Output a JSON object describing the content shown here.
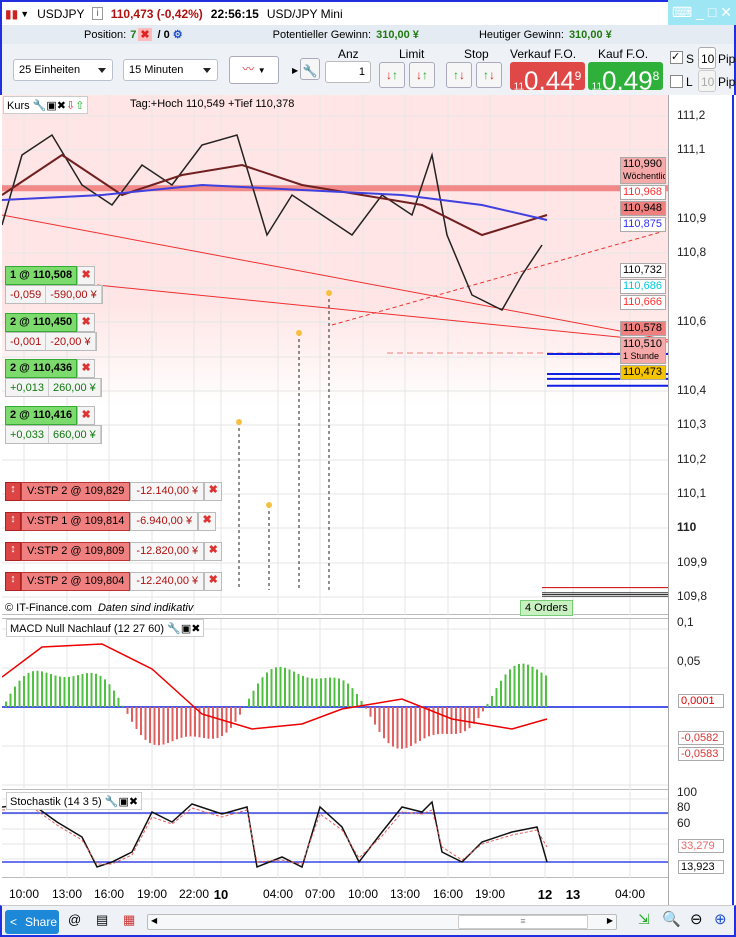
{
  "title": {
    "symbol": "USDJPY",
    "price_change": "110,473 (-0,42%)",
    "time": "22:56:15",
    "name": "USD/JPY Mini"
  },
  "position_bar": {
    "position_label": "Position:",
    "position_value": "7",
    "position_sep": "/ 0",
    "pot_gain_label": "Potentieller Gewinn:",
    "pot_gain_value": "310,00 ¥",
    "today_gain_label": "Heutiger Gewinn:",
    "today_gain_value": "310,00 ¥"
  },
  "toolbar": {
    "units": "25 Einheiten",
    "interval": "15 Minuten",
    "anz_label": "Anz",
    "anz_value": "1",
    "limit_label": "Limit",
    "stop_label": "Stop",
    "sell_label": "Verkauf F.O.",
    "buy_label": "Kauf F.O.",
    "sell_price": {
      "pre": "11",
      "main": "0,44",
      "sup": "9"
    },
    "buy_price": {
      "pre": "11",
      "main": "0,49",
      "sup": "8"
    },
    "s_label": "S",
    "s_pips": "10",
    "l_label": "L",
    "l_pips": "10",
    "pips_label": "Pips"
  },
  "chart": {
    "title": "Kurs",
    "info": "Tag:+Hoch 110,549 +Tief 110,378",
    "copyright": "© IT-Finance.com",
    "disclaimer": "Daten sind indikativ",
    "orders_tab": "4 Orders"
  },
  "price_axis": {
    "ticks": [
      "111,2",
      "111,1",
      "110,9",
      "110,8",
      "110,6",
      "110,4",
      "110,3",
      "110,2",
      "110,1",
      "110",
      "109,9",
      "109,8"
    ],
    "labels": [
      {
        "text": "110,990",
        "sub": "Wöchentlich",
        "color": "#000",
        "bg": "#f5a9a9"
      },
      {
        "text": "110,968",
        "color": "#ff3030",
        "bg": "#fff"
      },
      {
        "text": "110,948",
        "color": "#000",
        "bg": "#f08080"
      },
      {
        "text": "110,875",
        "color": "#3030ff",
        "bg": "#fff"
      },
      {
        "text": "110,732",
        "color": "#000",
        "bg": "#fff"
      },
      {
        "text": "110,686",
        "color": "#00c8e0",
        "bg": "#fff"
      },
      {
        "text": "110,666",
        "color": "#ff3030",
        "bg": "#fff"
      },
      {
        "text": "110,578",
        "color": "#000",
        "bg": "#f08080"
      },
      {
        "text": "110,510",
        "sub": "1 Stunde",
        "color": "#000",
        "bg": "#f5a9a9"
      },
      {
        "text": "110,473",
        "color": "#000",
        "bg": "#f5c400"
      }
    ]
  },
  "positions": [
    {
      "label": "1 @ 110,508",
      "diff": "-0,059",
      "pl": "-590,00 ¥",
      "sign": "neg"
    },
    {
      "label": "2 @ 110,450",
      "diff": "-0,001",
      "pl": "-20,00 ¥",
      "sign": "neg"
    },
    {
      "label": "2 @ 110,436",
      "diff": "+0,013",
      "pl": "260,00 ¥",
      "sign": "pos"
    },
    {
      "label": "2 @ 110,416",
      "diff": "+0,033",
      "pl": "660,00 ¥",
      "sign": "pos"
    }
  ],
  "stops": [
    {
      "label": "V:STP  2 @ 109,829",
      "value": "-12.140,00 ¥"
    },
    {
      "label": "V:STP  1 @ 109,814",
      "value": "-6.940,00 ¥"
    },
    {
      "label": "V:STP  2 @ 109,809",
      "value": "-12.820,00 ¥"
    },
    {
      "label": "V:STP  2 @ 109,804",
      "value": "-12.240,00 ¥"
    }
  ],
  "macd": {
    "title": "MACD Null Nachlauf (12 27 60)",
    "ticks": [
      "0,1",
      "0,05"
    ],
    "labels": [
      "0,0001",
      "-0,0582",
      "-0,0583"
    ]
  },
  "stoch": {
    "title": "Stochastik (14 3 5)",
    "ticks": [
      "100",
      "80",
      "60"
    ],
    "labels": [
      "33,279",
      "13,923"
    ]
  },
  "time_axis": [
    "10:00",
    "13:00",
    "16:00",
    "19:00",
    "22:00",
    "10",
    "04:00",
    "07:00",
    "10:00",
    "13:00",
    "16:00",
    "19:00",
    "12",
    "13",
    "04:00"
  ],
  "bottom": {
    "share": "Share"
  }
}
